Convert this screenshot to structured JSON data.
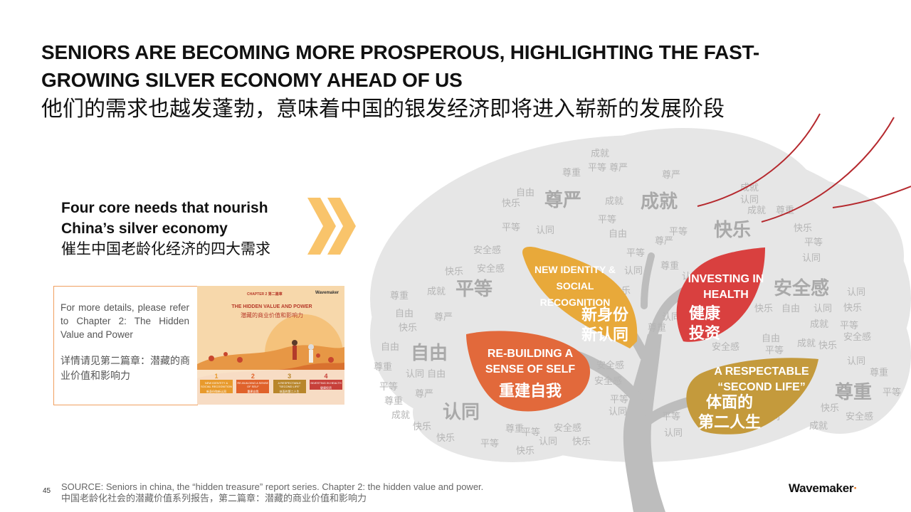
{
  "title": {
    "en": "SENIORS ARE BECOMING MORE PROSPEROUS, HIGHLIGHTING THE FAST-GROWING SILVER ECONOMY AHEAD OF US",
    "cn": "他们的需求也越发蓬勃，意味着中国的银发经济即将进入崭新的发展阶段"
  },
  "core_needs": {
    "line1": "Four core needs that nourish",
    "line2": "China’s silver economy",
    "line3": "催生中国老龄化经济的四大需求"
  },
  "details": {
    "en": "For more details, please refer to Chapter 2: The Hidden Value and Power",
    "cn": "详情请见第二篇章：潜藏的商业价值和影响力"
  },
  "report_thumbnail": {
    "header": "CHAPTER 2 第二篇章",
    "brand": "Wavemaker",
    "title_en": "THE HIDDEN VALUE AND POWER",
    "title_cn": "潜藏的商业价值和影响力",
    "items": [
      {
        "num": "1",
        "label": "NEW IDENTITY & SOCIAL RECOGNITION",
        "cn": "新身份和新认同",
        "color": "#e89a2c"
      },
      {
        "num": "2",
        "label": "RE-BUILDING A SENSE OF SELF",
        "cn": "重建自我",
        "color": "#e0622b"
      },
      {
        "num": "3",
        "label": "A RESPECTABLE \"SECOND LIFE\"",
        "cn": "体面的第二人生",
        "color": "#b8862b"
      },
      {
        "num": "4",
        "label": "INVESTING IN HEALTH",
        "cn": "健康投资",
        "color": "#c7403a"
      }
    ]
  },
  "leaves": [
    {
      "en": "NEW IDENTITY & SOCIAL RECOGNITION",
      "cn": "新身份 新认同",
      "color": "#e8a93a"
    },
    {
      "en": "INVESTING IN HEALTH",
      "cn": "健康 投资",
      "color": "#d9403f"
    },
    {
      "en": "RE-BUILDING A SENSE OF SELF",
      "cn": "重建自我",
      "color": "#e2693b"
    },
    {
      "en": "A RESPECTABLE “SECOND LIFE”",
      "cn": "体面的 第二人生",
      "color": "#c49a3c"
    }
  ],
  "tree_words": [
    "成就",
    "尊严",
    "快乐",
    "平等",
    "安全感",
    "自由",
    "认同",
    "尊重"
  ],
  "source": {
    "en": "SOURCE: Seniors in china, the “hidden treasure” report series. Chapter 2: the hidden value and power.",
    "cn": "中国老龄化社会的潜藏价值系列报告，第二篇章：潜藏的商业价值和影响力"
  },
  "page_number": "45",
  "brand": "Wavemaker",
  "colors": {
    "accent_orange": "#f5a623",
    "chevron": "#f9c46b",
    "tree_gray": "#c4c4c4"
  }
}
